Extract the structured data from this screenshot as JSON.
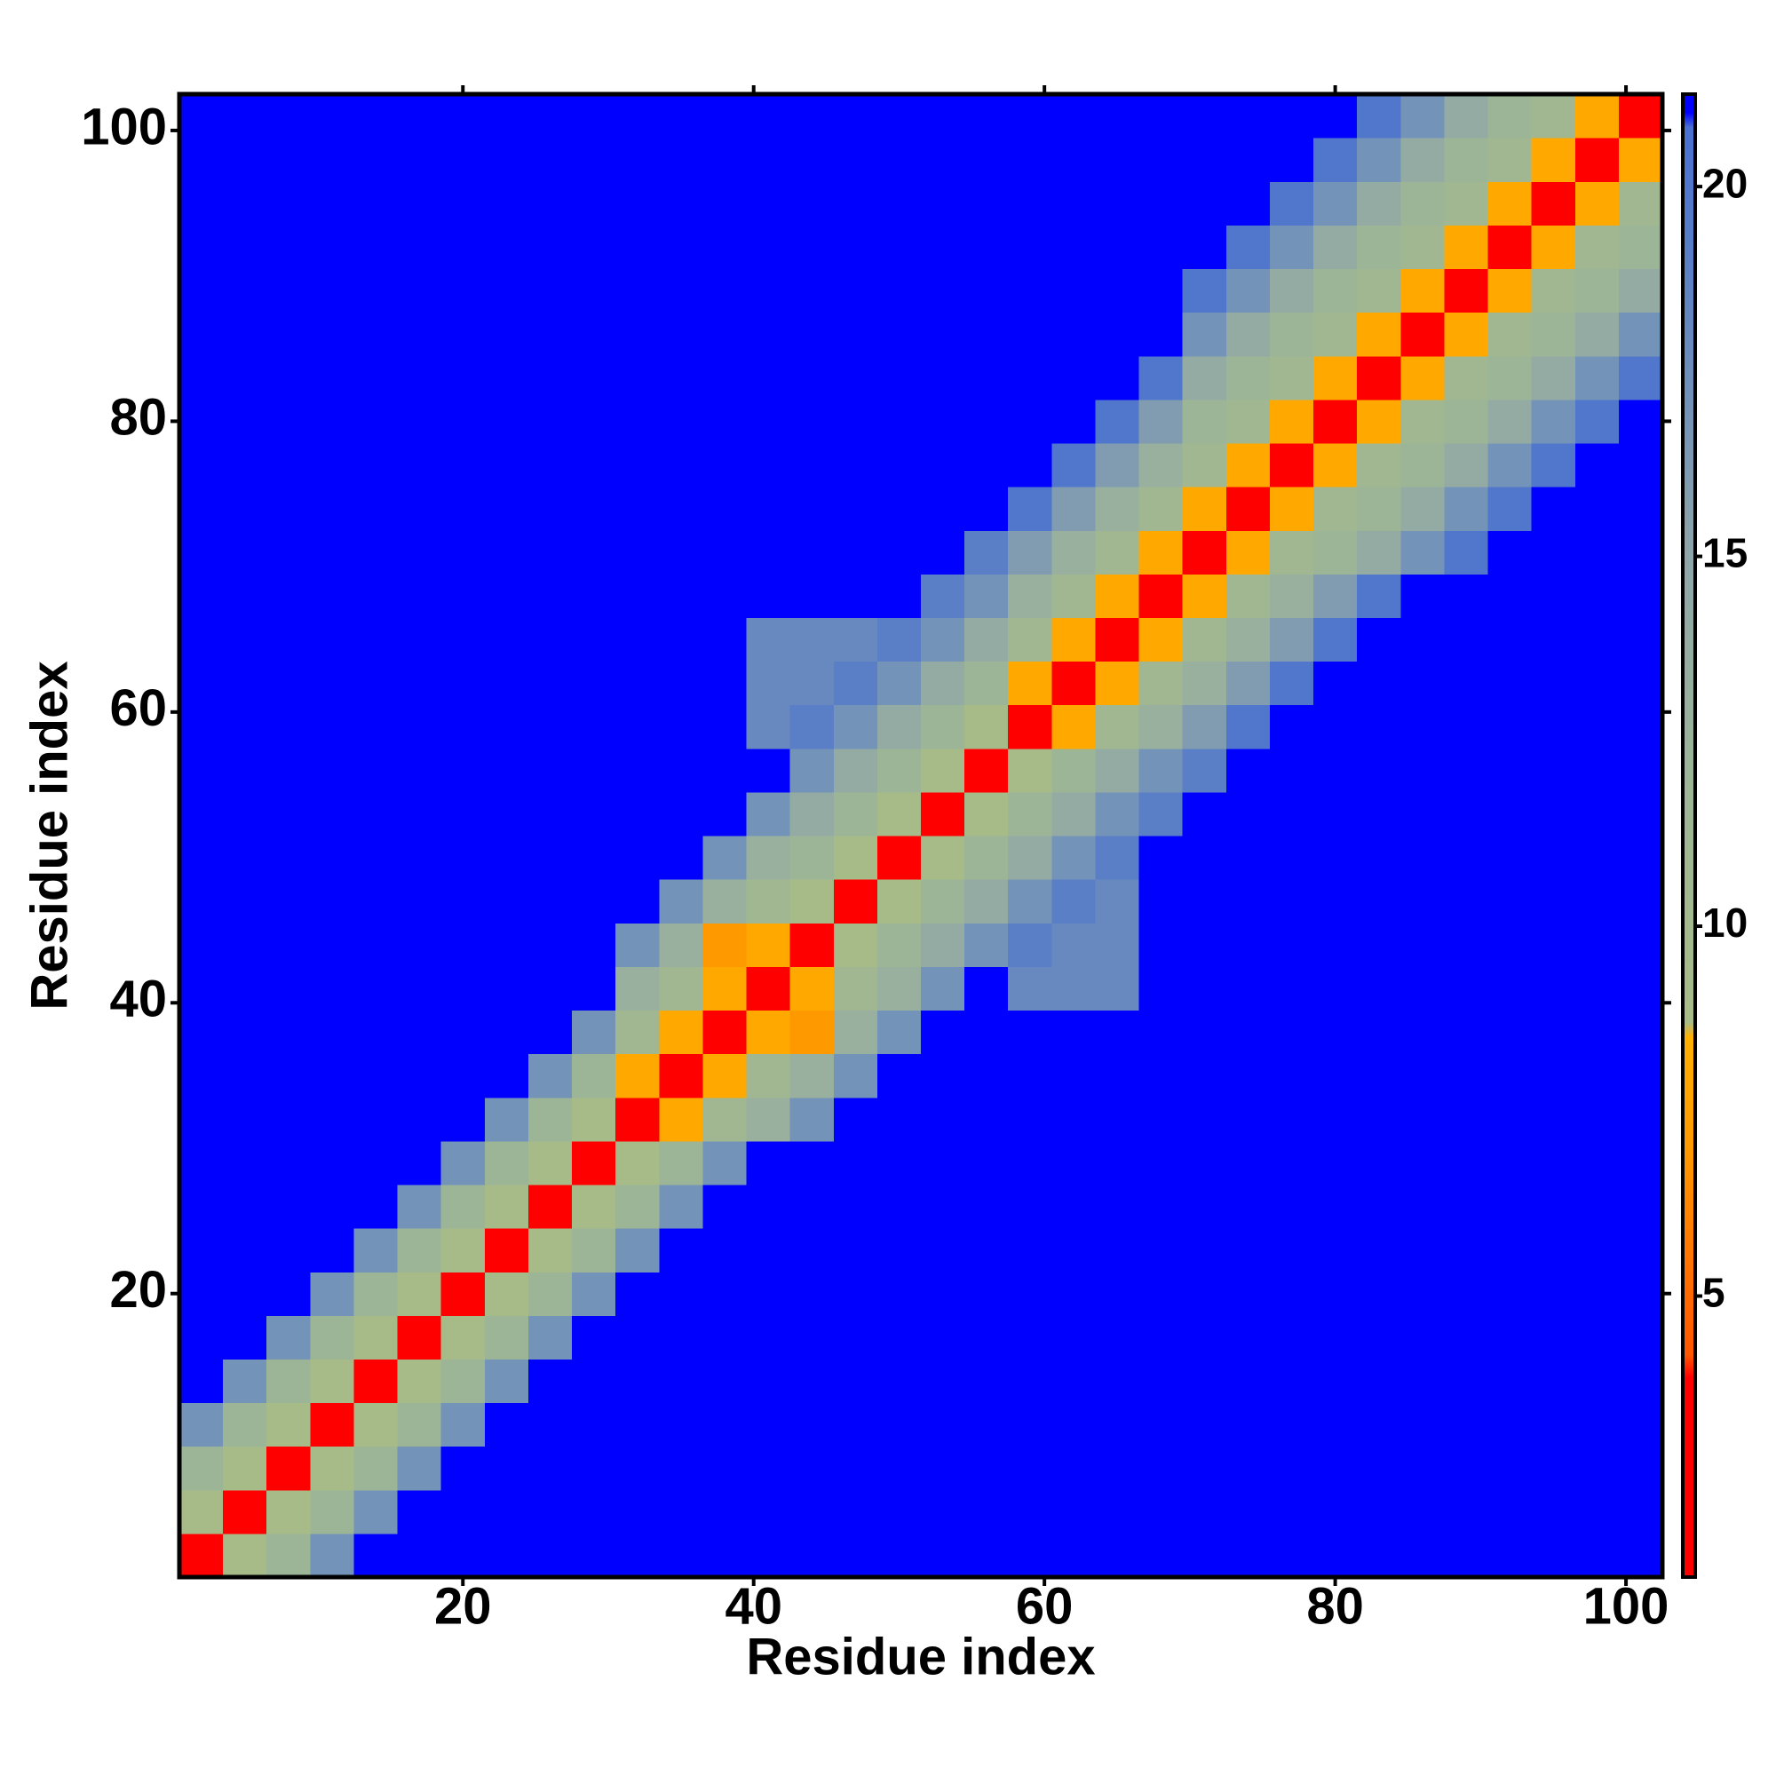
{
  "chart_data": {
    "type": "heatmap",
    "x_label": "Residue index",
    "y_label": "Residue index",
    "xlim": [
      0.5,
      102.5
    ],
    "ylim": [
      0.5,
      102.5
    ],
    "xticks": [
      20,
      40,
      60,
      80,
      100
    ],
    "yticks": [
      20,
      40,
      60,
      80,
      100
    ],
    "zlim": [
      1.2,
      21.25
    ],
    "zticks": [
      5,
      10,
      15,
      20
    ],
    "cell_size": 3,
    "colorscale": [
      [
        1.2,
        "#ff0000"
      ],
      [
        3.9,
        "#ff0000"
      ],
      [
        4.2,
        "#ff5500"
      ],
      [
        7,
        "#ff9900"
      ],
      [
        8.5,
        "#ffb000"
      ],
      [
        8.7,
        "#a8bc88"
      ],
      [
        12,
        "#9db597"
      ],
      [
        15,
        "#8ea6a9"
      ],
      [
        19,
        "#5a7fc6"
      ],
      [
        20.8,
        "#4a70d2"
      ],
      [
        21,
        "#0000ff"
      ],
      [
        21.25,
        "#0000ff"
      ]
    ],
    "x": [
      2,
      5,
      8,
      11,
      14,
      17,
      20,
      23,
      26,
      29,
      32,
      35,
      38,
      41,
      44,
      47,
      50,
      53,
      56,
      59,
      62,
      65,
      68,
      71,
      74,
      77,
      80,
      83,
      86,
      89,
      92,
      95,
      98,
      101
    ],
    "y": [
      2,
      5,
      8,
      11,
      14,
      17,
      20,
      23,
      26,
      29,
      32,
      35,
      38,
      41,
      44,
      47,
      50,
      53,
      56,
      59,
      62,
      65,
      68,
      71,
      74,
      77,
      80,
      83,
      86,
      89,
      92,
      95,
      98,
      101
    ],
    "z": [
      [
        3,
        9,
        12,
        17,
        21,
        21,
        21,
        21,
        21,
        21,
        21,
        21,
        21,
        21,
        21,
        21,
        21,
        21,
        21,
        21,
        21,
        21,
        21,
        21,
        21,
        21,
        21,
        21,
        21,
        21,
        21,
        21,
        21,
        21
      ],
      [
        9,
        3,
        9,
        12,
        17,
        21,
        21,
        21,
        21,
        21,
        21,
        21,
        21,
        21,
        21,
        21,
        21,
        21,
        21,
        21,
        21,
        21,
        21,
        21,
        21,
        21,
        21,
        21,
        21,
        21,
        21,
        21,
        21,
        21
      ],
      [
        12,
        9,
        3,
        9,
        12,
        17,
        21,
        21,
        21,
        21,
        21,
        21,
        21,
        21,
        21,
        21,
        21,
        21,
        21,
        21,
        21,
        21,
        21,
        21,
        21,
        21,
        21,
        21,
        21,
        21,
        21,
        21,
        21,
        21
      ],
      [
        17,
        12,
        9,
        3,
        9,
        12,
        17,
        21,
        21,
        21,
        21,
        21,
        21,
        21,
        21,
        21,
        21,
        21,
        21,
        21,
        21,
        21,
        21,
        21,
        21,
        21,
        21,
        21,
        21,
        21,
        21,
        21,
        21,
        21
      ],
      [
        21,
        17,
        12,
        9,
        3,
        9,
        12,
        17,
        21,
        21,
        21,
        21,
        21,
        21,
        21,
        21,
        21,
        21,
        21,
        21,
        21,
        21,
        21,
        21,
        21,
        21,
        21,
        21,
        21,
        21,
        21,
        21,
        21,
        21
      ],
      [
        21,
        21,
        17,
        12,
        9,
        3,
        9,
        12,
        17,
        21,
        21,
        21,
        21,
        21,
        21,
        21,
        21,
        21,
        21,
        21,
        21,
        21,
        21,
        21,
        21,
        21,
        21,
        21,
        21,
        21,
        21,
        21,
        21,
        21
      ],
      [
        21,
        21,
        21,
        17,
        12,
        9,
        3,
        9,
        12,
        17,
        21,
        21,
        21,
        21,
        21,
        21,
        21,
        21,
        21,
        21,
        21,
        21,
        21,
        21,
        21,
        21,
        21,
        21,
        21,
        21,
        21,
        21,
        21,
        21
      ],
      [
        21,
        21,
        21,
        21,
        17,
        12,
        9,
        3,
        9,
        12,
        17,
        21,
        21,
        21,
        21,
        21,
        21,
        21,
        21,
        21,
        21,
        21,
        21,
        21,
        21,
        21,
        21,
        21,
        21,
        21,
        21,
        21,
        21,
        21
      ],
      [
        21,
        21,
        21,
        21,
        21,
        17,
        12,
        9,
        3,
        9,
        12,
        17,
        21,
        21,
        21,
        21,
        21,
        21,
        21,
        21,
        21,
        21,
        21,
        21,
        21,
        21,
        21,
        21,
        21,
        21,
        21,
        21,
        21,
        21
      ],
      [
        21,
        21,
        21,
        21,
        21,
        21,
        17,
        12,
        9,
        3,
        9,
        12,
        17,
        21,
        21,
        21,
        21,
        21,
        21,
        21,
        21,
        21,
        21,
        21,
        21,
        21,
        21,
        21,
        21,
        21,
        21,
        21,
        21,
        21
      ],
      [
        21,
        21,
        21,
        21,
        21,
        21,
        21,
        17,
        12,
        9,
        3,
        8,
        11,
        13,
        17,
        21,
        21,
        21,
        21,
        21,
        21,
        21,
        21,
        21,
        21,
        21,
        21,
        21,
        21,
        21,
        21,
        21,
        21,
        21
      ],
      [
        21,
        21,
        21,
        21,
        21,
        21,
        21,
        21,
        17,
        12,
        8,
        3,
        8,
        11,
        13,
        17,
        21,
        21,
        21,
        21,
        21,
        21,
        21,
        21,
        21,
        21,
        21,
        21,
        21,
        21,
        21,
        21,
        21,
        21
      ],
      [
        21,
        21,
        21,
        21,
        21,
        21,
        21,
        21,
        21,
        17,
        11,
        8,
        3,
        8,
        7,
        13,
        17,
        21,
        21,
        21,
        21,
        21,
        21,
        21,
        21,
        21,
        21,
        21,
        21,
        21,
        21,
        21,
        21,
        21
      ],
      [
        21,
        21,
        21,
        21,
        21,
        21,
        21,
        21,
        21,
        21,
        13,
        11,
        8,
        3,
        8,
        11,
        13,
        17,
        21,
        18,
        18,
        18,
        21,
        21,
        21,
        21,
        21,
        21,
        21,
        21,
        21,
        21,
        21,
        21
      ],
      [
        21,
        21,
        21,
        21,
        21,
        21,
        21,
        21,
        21,
        21,
        17,
        13,
        7,
        8,
        3,
        9,
        12,
        14,
        17,
        19,
        18,
        18,
        21,
        21,
        21,
        21,
        21,
        21,
        21,
        21,
        21,
        21,
        21,
        21
      ],
      [
        21,
        21,
        21,
        21,
        21,
        21,
        21,
        21,
        21,
        21,
        21,
        17,
        13,
        11,
        9,
        3,
        9,
        12,
        14,
        17,
        19,
        18,
        21,
        21,
        21,
        21,
        21,
        21,
        21,
        21,
        21,
        21,
        21,
        21
      ],
      [
        21,
        21,
        21,
        21,
        21,
        21,
        21,
        21,
        21,
        21,
        21,
        21,
        17,
        13,
        12,
        9,
        3,
        9,
        12,
        14,
        17,
        19,
        21,
        21,
        21,
        21,
        21,
        21,
        21,
        21,
        21,
        21,
        21,
        21
      ],
      [
        21,
        21,
        21,
        21,
        21,
        21,
        21,
        21,
        21,
        21,
        21,
        21,
        21,
        17,
        14,
        12,
        9,
        3,
        9,
        12,
        14,
        17,
        19,
        21,
        21,
        21,
        21,
        21,
        21,
        21,
        21,
        21,
        21,
        21
      ],
      [
        21,
        21,
        21,
        21,
        21,
        21,
        21,
        21,
        21,
        21,
        21,
        21,
        21,
        21,
        17,
        14,
        12,
        9,
        3,
        9,
        12,
        14,
        17,
        19,
        21,
        21,
        21,
        21,
        21,
        21,
        21,
        21,
        21,
        21
      ],
      [
        21,
        21,
        21,
        21,
        21,
        21,
        21,
        21,
        21,
        21,
        21,
        21,
        21,
        18,
        19,
        17,
        14,
        12,
        9,
        3,
        8,
        11,
        13,
        16,
        20,
        21,
        21,
        21,
        21,
        21,
        21,
        21,
        21,
        21
      ],
      [
        21,
        21,
        21,
        21,
        21,
        21,
        21,
        21,
        21,
        21,
        21,
        21,
        21,
        18,
        18,
        19,
        17,
        14,
        12,
        8,
        3,
        8,
        11,
        13,
        16,
        20,
        21,
        21,
        21,
        21,
        21,
        21,
        21,
        21
      ],
      [
        21,
        21,
        21,
        21,
        21,
        21,
        21,
        21,
        21,
        21,
        21,
        21,
        21,
        18,
        18,
        18,
        19,
        17,
        14,
        11,
        8,
        3,
        8,
        11,
        13,
        16,
        20,
        21,
        21,
        21,
        21,
        21,
        21,
        21
      ],
      [
        21,
        21,
        21,
        21,
        21,
        21,
        21,
        21,
        21,
        21,
        21,
        21,
        21,
        21,
        21,
        21,
        21,
        19,
        17,
        13,
        11,
        8,
        3,
        8,
        11,
        13,
        16,
        20,
        21,
        21,
        21,
        21,
        21,
        21
      ],
      [
        21,
        21,
        21,
        21,
        21,
        21,
        21,
        21,
        21,
        21,
        21,
        21,
        21,
        21,
        21,
        21,
        21,
        21,
        19,
        16,
        13,
        11,
        8,
        3,
        8,
        11,
        12,
        14,
        17,
        20,
        21,
        21,
        21,
        21
      ],
      [
        21,
        21,
        21,
        21,
        21,
        21,
        21,
        21,
        21,
        21,
        21,
        21,
        21,
        21,
        21,
        21,
        21,
        21,
        21,
        20,
        16,
        13,
        11,
        8,
        3,
        8,
        11,
        12,
        14,
        17,
        20,
        21,
        21,
        21
      ],
      [
        21,
        21,
        21,
        21,
        21,
        21,
        21,
        21,
        21,
        21,
        21,
        21,
        21,
        21,
        21,
        21,
        21,
        21,
        21,
        21,
        20,
        16,
        13,
        11,
        8,
        3,
        8,
        11,
        12,
        14,
        17,
        20,
        21,
        21
      ],
      [
        21,
        21,
        21,
        21,
        21,
        21,
        21,
        21,
        21,
        21,
        21,
        21,
        21,
        21,
        21,
        21,
        21,
        21,
        21,
        21,
        21,
        20,
        16,
        12,
        11,
        8,
        3,
        8,
        11,
        12,
        14,
        17,
        20,
        21
      ],
      [
        21,
        21,
        21,
        21,
        21,
        21,
        21,
        21,
        21,
        21,
        21,
        21,
        21,
        21,
        21,
        21,
        21,
        21,
        21,
        21,
        21,
        21,
        20,
        14,
        12,
        11,
        8,
        3,
        8,
        11,
        12,
        14,
        17,
        20
      ],
      [
        21,
        21,
        21,
        21,
        21,
        21,
        21,
        21,
        21,
        21,
        21,
        21,
        21,
        21,
        21,
        21,
        21,
        21,
        21,
        21,
        21,
        21,
        21,
        17,
        14,
        12,
        11,
        8,
        3,
        8,
        11,
        12,
        14,
        17
      ],
      [
        21,
        21,
        21,
        21,
        21,
        21,
        21,
        21,
        21,
        21,
        21,
        21,
        21,
        21,
        21,
        21,
        21,
        21,
        21,
        21,
        21,
        21,
        21,
        20,
        17,
        14,
        12,
        11,
        8,
        3,
        8,
        11,
        12,
        14
      ],
      [
        21,
        21,
        21,
        21,
        21,
        21,
        21,
        21,
        21,
        21,
        21,
        21,
        21,
        21,
        21,
        21,
        21,
        21,
        21,
        21,
        21,
        21,
        21,
        21,
        20,
        17,
        14,
        12,
        11,
        8,
        3,
        8,
        11,
        12
      ],
      [
        21,
        21,
        21,
        21,
        21,
        21,
        21,
        21,
        21,
        21,
        21,
        21,
        21,
        21,
        21,
        21,
        21,
        21,
        21,
        21,
        21,
        21,
        21,
        21,
        21,
        20,
        17,
        14,
        12,
        11,
        8,
        3,
        8,
        11
      ],
      [
        21,
        21,
        21,
        21,
        21,
        21,
        21,
        21,
        21,
        21,
        21,
        21,
        21,
        21,
        21,
        21,
        21,
        21,
        21,
        21,
        21,
        21,
        21,
        21,
        21,
        21,
        20,
        17,
        14,
        12,
        11,
        8,
        3,
        8
      ],
      [
        21,
        21,
        21,
        21,
        21,
        21,
        21,
        21,
        21,
        21,
        21,
        21,
        21,
        21,
        21,
        21,
        21,
        21,
        21,
        21,
        21,
        21,
        21,
        21,
        21,
        21,
        21,
        20,
        17,
        14,
        12,
        11,
        8,
        3
      ]
    ]
  }
}
